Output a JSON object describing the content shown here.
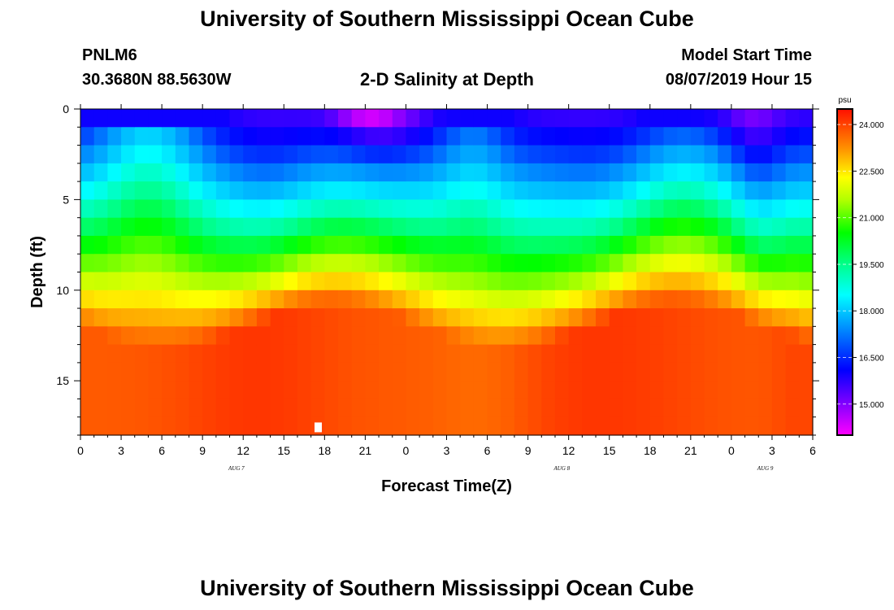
{
  "page": {
    "title_top": "University of Southern Mississippi Ocean Cube",
    "title_bottom": "University of Southern Mississippi Ocean Cube"
  },
  "header": {
    "station": "PNLM6",
    "coords": "30.3680N 88.5630W",
    "plot_title": "2-D Salinity at Depth",
    "model_label": "Model Start Time",
    "model_time": "08/07/2019 Hour 15"
  },
  "chart_data": {
    "type": "heatmap",
    "title": "2-D Salinity at Depth",
    "xlabel": "Forecast Time(Z)",
    "ylabel": "Depth (ft)",
    "x_range_hours": [
      0,
      54
    ],
    "x_ticks": [
      "0",
      "3",
      "6",
      "9",
      "12",
      "15",
      "18",
      "21",
      "0",
      "3",
      "6",
      "9",
      "12",
      "15",
      "18",
      "21",
      "0",
      "3",
      "6"
    ],
    "x_date_labels": [
      {
        "label": "AUG 7",
        "hour": 11.5
      },
      {
        "label": "AUG 8",
        "hour": 35.5
      },
      {
        "label": "AUG 9",
        "hour": 50.5
      }
    ],
    "y_range_ft": [
      0,
      18
    ],
    "y_ticks": [
      0,
      5,
      10,
      15
    ],
    "colorbar": {
      "units": "psu",
      "min": 14.0,
      "max": 24.5,
      "tick_values": [
        15.0,
        16.5,
        18.0,
        19.5,
        21.0,
        22.5,
        24.0
      ],
      "tick_labels": [
        "15.000",
        "16.500",
        "18.000",
        "19.500",
        "21.000",
        "22.500",
        "24.000"
      ]
    },
    "marker": {
      "hour": 17.5,
      "depth_ft": 17.75,
      "color": "#ffffff"
    },
    "grid": false
  }
}
